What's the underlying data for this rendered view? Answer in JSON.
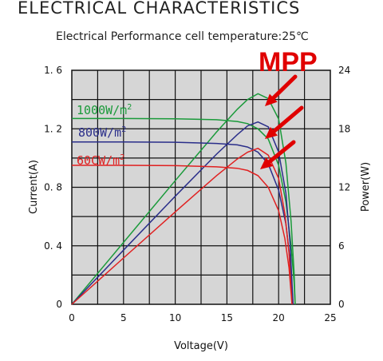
{
  "heading": "ELECTRICAL CHARACTERISTICS",
  "chart_data": {
    "type": "line",
    "title": "Electrical Performance cell temperature:25℃",
    "xlabel": "Voltage(V)",
    "ylabel_left": "Current(A)",
    "ylabel_right": "Power(W)",
    "xlim": [
      0,
      25
    ],
    "ylim_left": [
      0,
      1.6
    ],
    "ylim_right": [
      0,
      24
    ],
    "x_ticks": [
      "0",
      "5",
      "10",
      "15",
      "20",
      "25"
    ],
    "y_left_ticks": [
      "0",
      "0. 4",
      "0. 8",
      "1. 2",
      "1. 6"
    ],
    "y_right_ticks": [
      "0",
      "6",
      "12",
      "18",
      "24"
    ],
    "grid": true,
    "annotation": "MPP",
    "series": [
      {
        "name": "1000W/m²",
        "label_base": "1000W/m",
        "label_sup": "2",
        "color": "#1a9a3a",
        "iv": [
          [
            0,
            1.27
          ],
          [
            5,
            1.27
          ],
          [
            10,
            1.268
          ],
          [
            14,
            1.262
          ],
          [
            16,
            1.25
          ],
          [
            17,
            1.235
          ],
          [
            18,
            1.2
          ],
          [
            19,
            1.13
          ],
          [
            20,
            0.95
          ],
          [
            20.7,
            0.7
          ],
          [
            21.2,
            0.4
          ],
          [
            21.5,
            0.15
          ],
          [
            21.6,
            0
          ]
        ],
        "pv": [
          [
            0,
            0
          ],
          [
            5,
            6.35
          ],
          [
            10,
            12.68
          ],
          [
            14,
            17.67
          ],
          [
            16,
            20.0
          ],
          [
            17,
            21.0
          ],
          [
            18,
            21.6
          ],
          [
            19,
            21.1
          ],
          [
            20,
            19.0
          ],
          [
            20.7,
            14.5
          ],
          [
            21.2,
            8.5
          ],
          [
            21.5,
            3.2
          ],
          [
            21.6,
            0
          ]
        ]
      },
      {
        "name": "800W/m²",
        "label_base": "800W/m",
        "label_sup": "2",
        "color": "#2a2e8a",
        "iv": [
          [
            0,
            1.11
          ],
          [
            5,
            1.11
          ],
          [
            10,
            1.108
          ],
          [
            14,
            1.1
          ],
          [
            16,
            1.09
          ],
          [
            17,
            1.075
          ],
          [
            18,
            1.04
          ],
          [
            19,
            0.96
          ],
          [
            20,
            0.78
          ],
          [
            20.7,
            0.55
          ],
          [
            21.1,
            0.3
          ],
          [
            21.3,
            0.1
          ],
          [
            21.4,
            0
          ]
        ],
        "pv": [
          [
            0,
            0
          ],
          [
            5,
            5.55
          ],
          [
            10,
            11.08
          ],
          [
            14,
            15.4
          ],
          [
            16,
            17.4
          ],
          [
            17,
            18.3
          ],
          [
            18,
            18.7
          ],
          [
            19,
            18.2
          ],
          [
            20,
            15.6
          ],
          [
            20.7,
            11.4
          ],
          [
            21.1,
            6.3
          ],
          [
            21.3,
            2.1
          ],
          [
            21.4,
            0
          ]
        ]
      },
      {
        "name": "600W/m²",
        "label_base": "60CW/m",
        "label_sup": "2",
        "color": "#e02020",
        "iv": [
          [
            0,
            0.95
          ],
          [
            5,
            0.95
          ],
          [
            10,
            0.948
          ],
          [
            14,
            0.94
          ],
          [
            16,
            0.93
          ],
          [
            17,
            0.915
          ],
          [
            18,
            0.88
          ],
          [
            19,
            0.8
          ],
          [
            20,
            0.64
          ],
          [
            20.6,
            0.45
          ],
          [
            21.0,
            0.25
          ],
          [
            21.2,
            0.08
          ],
          [
            21.3,
            0
          ]
        ],
        "pv": [
          [
            0,
            0
          ],
          [
            5,
            4.75
          ],
          [
            10,
            9.48
          ],
          [
            14,
            13.2
          ],
          [
            16,
            14.9
          ],
          [
            17,
            15.6
          ],
          [
            18,
            16.0
          ],
          [
            19,
            15.3
          ],
          [
            20,
            12.9
          ],
          [
            20.6,
            9.3
          ],
          [
            21.0,
            5.3
          ],
          [
            21.2,
            1.7
          ],
          [
            21.3,
            0
          ]
        ]
      }
    ]
  }
}
